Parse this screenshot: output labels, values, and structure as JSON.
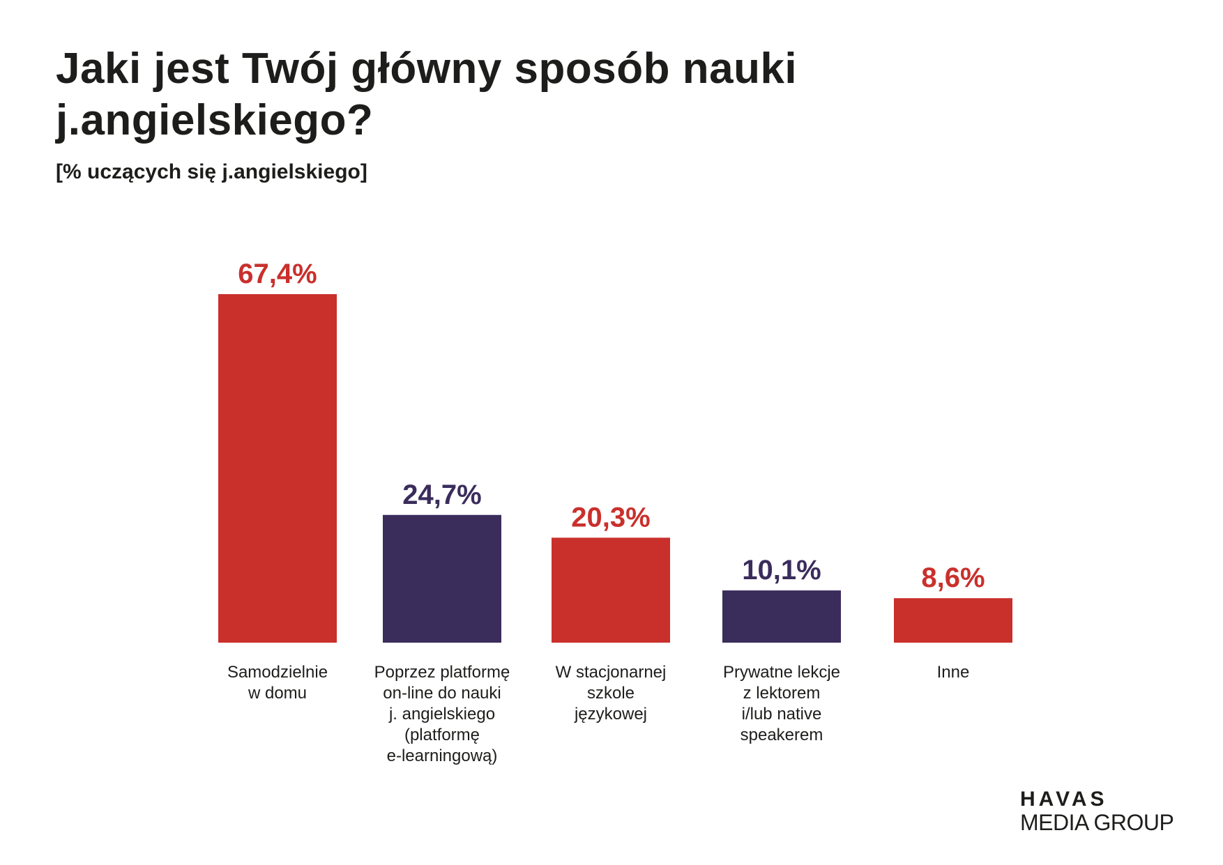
{
  "title": "Jaki jest Twój główny sposób nauki j.angielskiego?",
  "subtitle": "[% uczących się j.angielskiego]",
  "logo": {
    "line1": "HAVAS",
    "line2": "MEDIA GROUP"
  },
  "colors": {
    "red": "#C9302C",
    "navy": "#3A2D5C",
    "text": "#1D1D1B"
  },
  "chart_data": {
    "type": "bar",
    "title": "Jaki jest Twój główny sposób nauki j.angielskiego?",
    "subtitle": "[% uczących się j.angielskiego]",
    "grid": false,
    "legend": "none",
    "categories": [
      [
        "Samodzielnie",
        "w domu"
      ],
      [
        "Poprzez platformę",
        "on-line do nauki",
        "j. angielskiego",
        "(platformę",
        "e-learningową)"
      ],
      [
        "W stacjonarnej",
        "szkole",
        "językowej"
      ],
      [
        "Prywatne lekcje",
        "z lektorem",
        "i/lub native",
        "speakerem"
      ],
      [
        "Inne"
      ]
    ],
    "values": [
      67.4,
      24.7,
      20.3,
      10.1,
      8.6
    ],
    "value_labels": [
      "67,4%",
      "24,7%",
      "20,3%",
      "10,1%",
      "8,6%"
    ],
    "bar_colors": [
      "#C9302C",
      "#3A2D5C",
      "#C9302C",
      "#3A2D5C",
      "#C9302C"
    ],
    "ylim": [
      0,
      67.4
    ]
  }
}
